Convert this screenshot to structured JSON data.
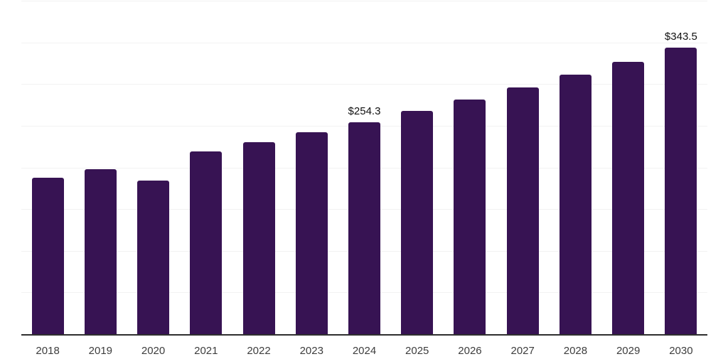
{
  "chart_data": {
    "type": "bar",
    "title": "",
    "xlabel": "",
    "ylabel": "",
    "categories": [
      "2018",
      "2019",
      "2020",
      "2021",
      "2022",
      "2023",
      "2024",
      "2025",
      "2026",
      "2027",
      "2028",
      "2029",
      "2030"
    ],
    "values": [
      187.3,
      197.5,
      183.9,
      219.0,
      230.5,
      242.2,
      254.3,
      267.4,
      281.2,
      295.7,
      310.9,
      326.9,
      343.5
    ],
    "data_labels": {
      "2024": "$254.3",
      "2030": "$343.5"
    },
    "ylim": [
      0,
      400
    ],
    "gridline_step": 50,
    "grid": true,
    "legend": "none",
    "y_axis_labels_visible": false,
    "bar_color": "#371353",
    "grid_color": "#f2f2f2",
    "axis_color": "#2f2f2f",
    "x_label_color": "#3d3d3d",
    "data_label_color": "#111111",
    "background_color": "#ffffff"
  }
}
